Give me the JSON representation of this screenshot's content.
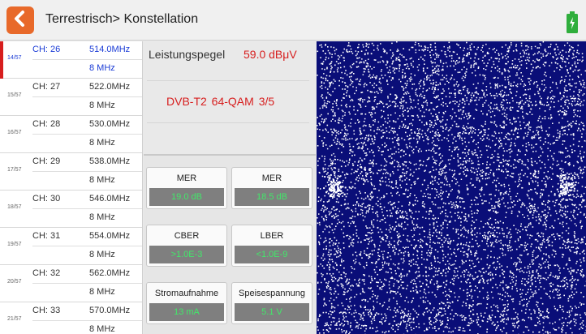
{
  "header": {
    "title": "Terrestrisch> Konstellation",
    "back_icon": "chevron-left-icon",
    "battery_icon": "battery-charging-icon",
    "accent_color": "#e8692a"
  },
  "channels": [
    {
      "index": "14/57",
      "ch": "CH: 26",
      "freq": "514.0MHz",
      "bw": "8 MHz",
      "active": true
    },
    {
      "index": "15/57",
      "ch": "CH: 27",
      "freq": "522.0MHz",
      "bw": "8 MHz"
    },
    {
      "index": "16/57",
      "ch": "CH: 28",
      "freq": "530.0MHz",
      "bw": "8 MHz"
    },
    {
      "index": "17/57",
      "ch": "CH: 29",
      "freq": "538.0MHz",
      "bw": "8 MHz"
    },
    {
      "index": "18/57",
      "ch": "CH: 30",
      "freq": "546.0MHz",
      "bw": "8 MHz"
    },
    {
      "index": "19/57",
      "ch": "CH: 31",
      "freq": "554.0MHz",
      "bw": "8 MHz"
    },
    {
      "index": "20/57",
      "ch": "CH: 32",
      "freq": "562.0MHz",
      "bw": "8 MHz"
    },
    {
      "index": "21/57",
      "ch": "CH: 33",
      "freq": "570.0MHz",
      "bw": "8 MHz"
    }
  ],
  "signal": {
    "power_label": "Leistungspegel",
    "power_value": "59.0 dBμV",
    "modulation": "DVB-T2   64-QAM   3/5"
  },
  "measurements": [
    {
      "label": "MER",
      "value": "19.0 dB"
    },
    {
      "label": "MER",
      "value": "18.5 dB"
    },
    {
      "label": "CBER",
      "value": ">1.0E-3"
    },
    {
      "label": "LBER",
      "value": "<1.0E-9"
    },
    {
      "label": "Stromaufnahme",
      "value": "13 mA"
    },
    {
      "label": "Speisespannung",
      "value": "5.1 V"
    }
  ],
  "colors": {
    "value_green": "#42e86a",
    "value_red": "#d71e1e",
    "active_blue": "#1a3bd6",
    "constellation_bg": "#0a0e78",
    "constellation_dots": "#ffffff"
  }
}
